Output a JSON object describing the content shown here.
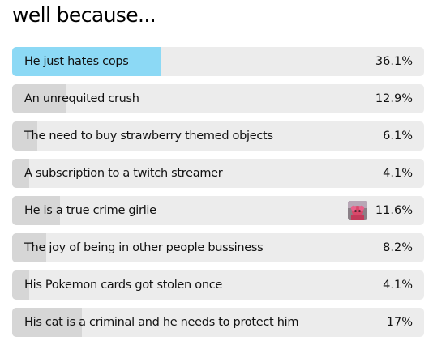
{
  "poll": {
    "question": "well because...",
    "options": [
      {
        "label": "He just hates cops",
        "percent_text": "36.1%",
        "percent": 36.1,
        "selected": true
      },
      {
        "label": "An unrequited crush",
        "percent_text": "12.9%",
        "percent": 12.9,
        "selected": false
      },
      {
        "label": "The need to buy strawberry themed objects",
        "percent_text": "6.1%",
        "percent": 6.1,
        "selected": false
      },
      {
        "label": "A subscription to a twitch streamer",
        "percent_text": "4.1%",
        "percent": 4.1,
        "selected": false
      },
      {
        "label": "He is a true crime girlie",
        "percent_text": "11.6%",
        "percent": 11.6,
        "selected": false,
        "has_avatar": true
      },
      {
        "label": "The joy of being in other people bussiness",
        "percent_text": "8.2%",
        "percent": 8.2,
        "selected": false
      },
      {
        "label": "His Pokemon cards got stolen once",
        "percent_text": "4.1%",
        "percent": 4.1,
        "selected": false
      },
      {
        "label": "His cat is a criminal and he needs to protect him",
        "percent_text": "17%",
        "percent": 17,
        "selected": false
      }
    ]
  },
  "colors": {
    "selected_fill": "#8cd9f5",
    "result_fill": "#d6d6d6",
    "track": "#ececec"
  },
  "icons": {
    "voter_avatar": "voter-avatar-icon"
  }
}
